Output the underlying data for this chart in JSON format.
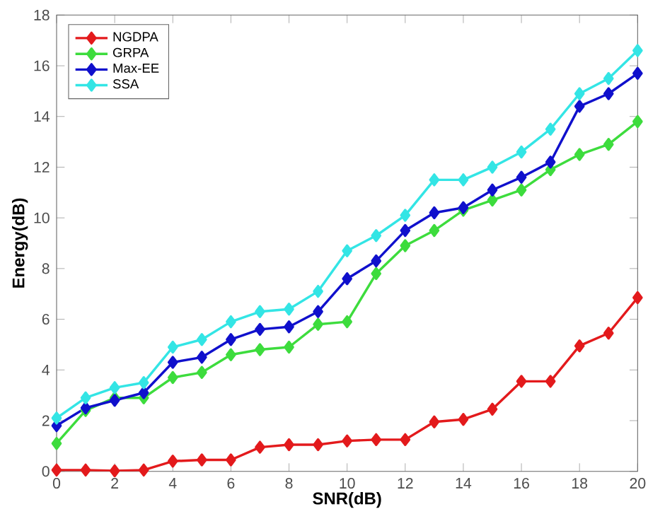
{
  "chart_data": {
    "type": "line",
    "xlabel": "SNR(dB)",
    "ylabel": "Energy(dB)",
    "x": [
      0,
      1,
      2,
      3,
      4,
      5,
      6,
      7,
      8,
      9,
      10,
      11,
      12,
      13,
      14,
      15,
      16,
      17,
      18,
      19,
      20
    ],
    "series": [
      {
        "name": "NGDPA",
        "color": "#e31a1c",
        "values": [
          0.05,
          0.05,
          0.02,
          0.05,
          0.4,
          0.45,
          0.45,
          0.95,
          1.05,
          1.05,
          1.2,
          1.25,
          1.25,
          1.95,
          2.05,
          2.45,
          3.55,
          3.55,
          4.95,
          5.45,
          6.85
        ]
      },
      {
        "name": "GRPA",
        "color": "#3ddc3d",
        "values": [
          1.1,
          2.4,
          2.9,
          2.9,
          3.7,
          3.9,
          4.6,
          4.8,
          4.9,
          5.8,
          5.9,
          7.8,
          8.9,
          9.5,
          10.3,
          10.7,
          11.1,
          11.9,
          12.5,
          12.9,
          13.8
        ]
      },
      {
        "name": "Max-EE",
        "color": "#1010cc",
        "values": [
          1.8,
          2.5,
          2.8,
          3.1,
          4.3,
          4.5,
          5.2,
          5.6,
          5.7,
          6.3,
          7.6,
          8.3,
          9.5,
          10.2,
          10.4,
          11.1,
          11.6,
          12.2,
          14.4,
          14.9,
          15.7
        ]
      },
      {
        "name": "SSA",
        "color": "#33e5e5",
        "values": [
          2.1,
          2.9,
          3.3,
          3.5,
          4.9,
          5.2,
          5.9,
          6.3,
          6.4,
          7.1,
          8.7,
          9.3,
          10.1,
          11.5,
          11.5,
          12.0,
          12.6,
          13.5,
          14.9,
          15.5,
          16.6
        ]
      }
    ],
    "xlim": [
      0,
      20
    ],
    "xticks": [
      0,
      2,
      4,
      6,
      8,
      10,
      12,
      14,
      16,
      18,
      20
    ],
    "ylim": [
      0,
      18
    ],
    "yticks": [
      0,
      2,
      4,
      6,
      8,
      10,
      12,
      14,
      16,
      18
    ],
    "legend": "top left",
    "marker": "diamond",
    "line_style": "solid",
    "grid": false
  }
}
